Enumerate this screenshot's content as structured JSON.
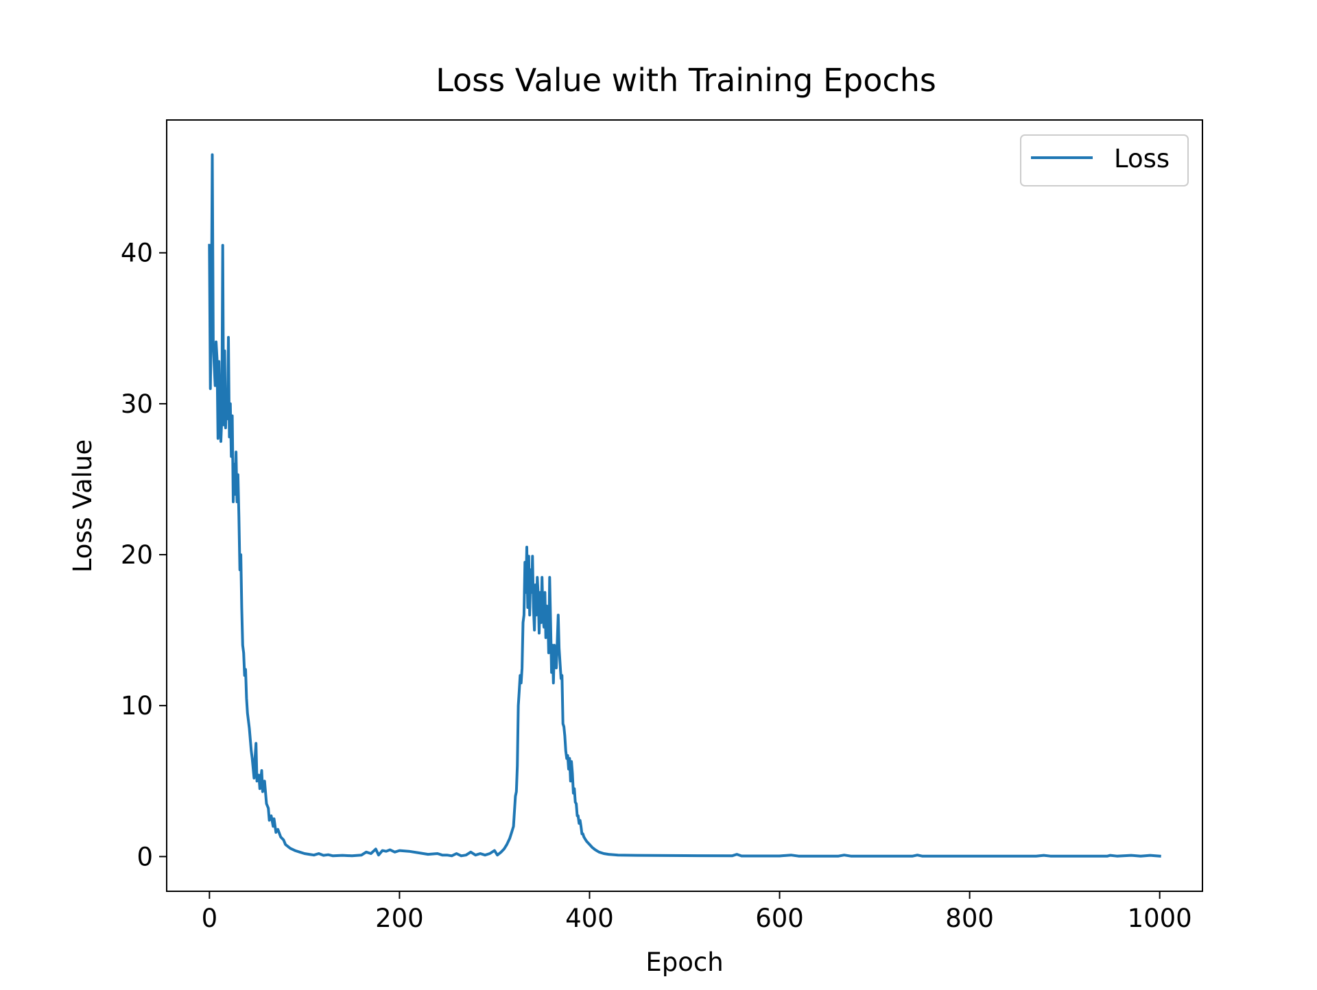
{
  "chart_data": {
    "type": "line",
    "title": "Loss Value with Training Epochs",
    "xlabel": "Epoch",
    "ylabel": "Loss Value",
    "xlim": [
      -45,
      1045
    ],
    "ylim": [
      -2.3,
      48.8
    ],
    "xticks": [
      0,
      200,
      400,
      600,
      800,
      1000
    ],
    "yticks": [
      0,
      10,
      20,
      30,
      40
    ],
    "grid": false,
    "legend": {
      "position": "top-right"
    },
    "series": [
      {
        "name": "Loss",
        "color": "#1f77b4",
        "points": [
          [
            0,
            40.5
          ],
          [
            1,
            31.0
          ],
          [
            2,
            36.0
          ],
          [
            3,
            46.5
          ],
          [
            4,
            34.0
          ],
          [
            5,
            32.5
          ],
          [
            6,
            31.2
          ],
          [
            7,
            34.1
          ],
          [
            8,
            33.0
          ],
          [
            9,
            27.7
          ],
          [
            10,
            32.8
          ],
          [
            11,
            30.0
          ],
          [
            12,
            27.5
          ],
          [
            13,
            29.0
          ],
          [
            14,
            40.5
          ],
          [
            15,
            28.6
          ],
          [
            16,
            33.5
          ],
          [
            17,
            28.4
          ],
          [
            18,
            30.5
          ],
          [
            19,
            29.0
          ],
          [
            20,
            34.4
          ],
          [
            21,
            27.8
          ],
          [
            22,
            30.0
          ],
          [
            23,
            26.5
          ],
          [
            24,
            29.2
          ],
          [
            25,
            23.5
          ],
          [
            26,
            26.0
          ],
          [
            27,
            24.0
          ],
          [
            28,
            26.8
          ],
          [
            29,
            23.5
          ],
          [
            30,
            25.3
          ],
          [
            31,
            22.5
          ],
          [
            32,
            19.0
          ],
          [
            33,
            20.0
          ],
          [
            34,
            16.5
          ],
          [
            35,
            14.0
          ],
          [
            36,
            13.5
          ],
          [
            37,
            12.0
          ],
          [
            38,
            12.4
          ],
          [
            39,
            10.5
          ],
          [
            40,
            9.5
          ],
          [
            42,
            8.5
          ],
          [
            44,
            7.0
          ],
          [
            45,
            6.5
          ],
          [
            47,
            5.2
          ],
          [
            48,
            6.5
          ],
          [
            49,
            7.5
          ],
          [
            50,
            5.0
          ],
          [
            52,
            5.4
          ],
          [
            53,
            4.5
          ],
          [
            55,
            5.7
          ],
          [
            56,
            4.3
          ],
          [
            58,
            5.0
          ],
          [
            60,
            3.5
          ],
          [
            62,
            3.2
          ],
          [
            63,
            2.4
          ],
          [
            65,
            2.7
          ],
          [
            67,
            2.0
          ],
          [
            68,
            2.5
          ],
          [
            70,
            1.6
          ],
          [
            72,
            1.8
          ],
          [
            75,
            1.3
          ],
          [
            78,
            1.1
          ],
          [
            80,
            0.8
          ],
          [
            85,
            0.55
          ],
          [
            90,
            0.4
          ],
          [
            95,
            0.3
          ],
          [
            100,
            0.2
          ],
          [
            105,
            0.15
          ],
          [
            110,
            0.1
          ],
          [
            115,
            0.2
          ],
          [
            120,
            0.08
          ],
          [
            125,
            0.12
          ],
          [
            130,
            0.05
          ],
          [
            140,
            0.08
          ],
          [
            150,
            0.05
          ],
          [
            160,
            0.1
          ],
          [
            165,
            0.3
          ],
          [
            170,
            0.2
          ],
          [
            175,
            0.5
          ],
          [
            178,
            0.1
          ],
          [
            182,
            0.4
          ],
          [
            186,
            0.35
          ],
          [
            190,
            0.45
          ],
          [
            195,
            0.3
          ],
          [
            200,
            0.4
          ],
          [
            210,
            0.35
          ],
          [
            220,
            0.25
          ],
          [
            230,
            0.15
          ],
          [
            240,
            0.2
          ],
          [
            245,
            0.1
          ],
          [
            250,
            0.1
          ],
          [
            255,
            0.05
          ],
          [
            260,
            0.2
          ],
          [
            265,
            0.05
          ],
          [
            270,
            0.1
          ],
          [
            275,
            0.3
          ],
          [
            280,
            0.1
          ],
          [
            285,
            0.2
          ],
          [
            290,
            0.1
          ],
          [
            295,
            0.2
          ],
          [
            300,
            0.4
          ],
          [
            303,
            0.1
          ],
          [
            307,
            0.3
          ],
          [
            310,
            0.5
          ],
          [
            313,
            0.8
          ],
          [
            316,
            1.2
          ],
          [
            318,
            1.6
          ],
          [
            320,
            2.0
          ],
          [
            322,
            4.0
          ],
          [
            323,
            4.3
          ],
          [
            324,
            6.0
          ],
          [
            325,
            10.0
          ],
          [
            326,
            11.0
          ],
          [
            327,
            12.0
          ],
          [
            328,
            11.5
          ],
          [
            329,
            12.5
          ],
          [
            330,
            15.5
          ],
          [
            331,
            16.0
          ],
          [
            332,
            19.5
          ],
          [
            333,
            17.5
          ],
          [
            334,
            20.5
          ],
          [
            335,
            16.5
          ],
          [
            336,
            19.9
          ],
          [
            337,
            16.0
          ],
          [
            338,
            19.0
          ],
          [
            339,
            17.5
          ],
          [
            340,
            19.9
          ],
          [
            341,
            16.5
          ],
          [
            342,
            15.0
          ],
          [
            343,
            18.0
          ],
          [
            344,
            16.0
          ],
          [
            345,
            18.5
          ],
          [
            346,
            17.2
          ],
          [
            347,
            14.8
          ],
          [
            348,
            17.5
          ],
          [
            349,
            15.5
          ],
          [
            350,
            18.5
          ],
          [
            351,
            16.0
          ],
          [
            352,
            15.2
          ],
          [
            353,
            17.5
          ],
          [
            354,
            14.5
          ],
          [
            355,
            16.6
          ],
          [
            356,
            16.2
          ],
          [
            357,
            13.5
          ],
          [
            358,
            18.5
          ],
          [
            359,
            15.5
          ],
          [
            360,
            12.2
          ],
          [
            361,
            14.0
          ],
          [
            362,
            11.5
          ],
          [
            363,
            14.0
          ],
          [
            364,
            13.2
          ],
          [
            365,
            12.5
          ],
          [
            366,
            14.2
          ],
          [
            367,
            16.0
          ],
          [
            368,
            13.8
          ],
          [
            369,
            12.8
          ],
          [
            370,
            11.8
          ],
          [
            371,
            12.0
          ],
          [
            372,
            8.8
          ],
          [
            373,
            8.6
          ],
          [
            374,
            8.0
          ],
          [
            375,
            7.0
          ],
          [
            376,
            6.5
          ],
          [
            377,
            6.7
          ],
          [
            378,
            5.8
          ],
          [
            379,
            6.5
          ],
          [
            380,
            5.0
          ],
          [
            381,
            6.3
          ],
          [
            382,
            5.5
          ],
          [
            383,
            4.2
          ],
          [
            384,
            4.5
          ],
          [
            385,
            3.6
          ],
          [
            386,
            3.5
          ],
          [
            387,
            2.7
          ],
          [
            388,
            2.7
          ],
          [
            389,
            2.2
          ],
          [
            390,
            2.4
          ],
          [
            391,
            2.0
          ],
          [
            392,
            1.5
          ],
          [
            393,
            1.5
          ],
          [
            394,
            1.3
          ],
          [
            395,
            1.2
          ],
          [
            397,
            1.0
          ],
          [
            400,
            0.8
          ],
          [
            403,
            0.6
          ],
          [
            406,
            0.45
          ],
          [
            410,
            0.3
          ],
          [
            415,
            0.2
          ],
          [
            420,
            0.15
          ],
          [
            430,
            0.1
          ],
          [
            450,
            0.08
          ],
          [
            500,
            0.06
          ],
          [
            550,
            0.05
          ],
          [
            555,
            0.15
          ],
          [
            560,
            0.04
          ],
          [
            600,
            0.04
          ],
          [
            612,
            0.1
          ],
          [
            620,
            0.03
          ],
          [
            662,
            0.03
          ],
          [
            668,
            0.1
          ],
          [
            675,
            0.03
          ],
          [
            740,
            0.03
          ],
          [
            745,
            0.1
          ],
          [
            750,
            0.03
          ],
          [
            800,
            0.03
          ],
          [
            870,
            0.03
          ],
          [
            878,
            0.08
          ],
          [
            885,
            0.03
          ],
          [
            945,
            0.03
          ],
          [
            948,
            0.08
          ],
          [
            955,
            0.03
          ],
          [
            970,
            0.08
          ],
          [
            980,
            0.03
          ],
          [
            990,
            0.08
          ],
          [
            1000,
            0.03
          ]
        ]
      }
    ]
  }
}
